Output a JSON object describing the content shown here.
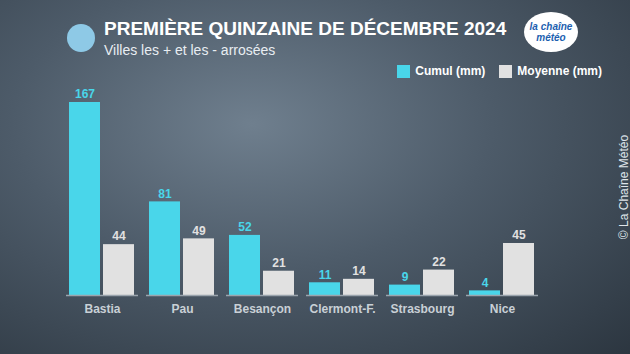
{
  "chart_data": {
    "type": "bar",
    "title": "PREMIÈRE QUINZAINE DE DÉCEMBRE 2024",
    "subtitle": "Villes les + et les - arrosées",
    "annotations": [
      "la chaîne météo",
      "© La Chaîne Météo"
    ],
    "categories": [
      "Bastia",
      "Pau",
      "Besançon",
      "Clermont-F.",
      "Strasbourg",
      "Nice"
    ],
    "series": [
      {
        "name": "Cumul (mm)",
        "color": "#49d6ea",
        "values": [
          167,
          81,
          52,
          11,
          9,
          4
        ]
      },
      {
        "name": "Moyenne (mm)",
        "color": "#e1e1e1",
        "values": [
          44,
          49,
          21,
          14,
          22,
          45
        ]
      }
    ],
    "ylim": [
      0,
      167
    ],
    "yticks": [],
    "legend": "top-right",
    "data_labels": true,
    "tick_labels": "x",
    "grid": false
  }
}
